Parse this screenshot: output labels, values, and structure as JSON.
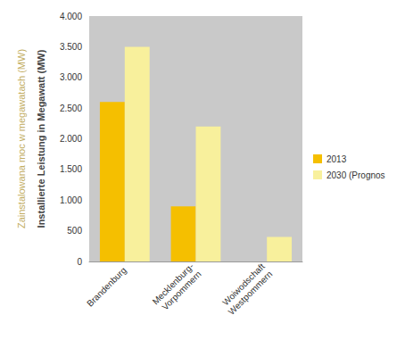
{
  "chart_data": {
    "type": "bar",
    "ylabels": [
      "Zainstalowana moc w megawatach (MW)",
      "Installierte Leistung in Megawatt (MW)"
    ],
    "categories": [
      "Brandenburg",
      "Mecklenburg-Vorpommern",
      "Woiwodschaft Westpommern"
    ],
    "series": [
      {
        "name": "2013",
        "color": "#f5bf00",
        "values": [
          2600,
          900,
          null
        ]
      },
      {
        "name": "2030 (Prognos",
        "color": "#f8f09c",
        "values": [
          3500,
          2200,
          400
        ]
      }
    ],
    "ylim": [
      0,
      4000
    ],
    "yticks": [
      0,
      500,
      {
        "value": 1000,
        "label": "1.000"
      },
      {
        "value": 1500,
        "label": "1.500"
      },
      {
        "value": 2000,
        "label": "2.000"
      },
      {
        "value": 2500,
        "label": "2.500"
      },
      {
        "value": 3000,
        "label": "3.000"
      },
      {
        "value": 3500,
        "label": "3.500"
      },
      {
        "value": 4000,
        "label": "4.000"
      }
    ],
    "grid": false,
    "legend": "right",
    "data_labels": false
  }
}
